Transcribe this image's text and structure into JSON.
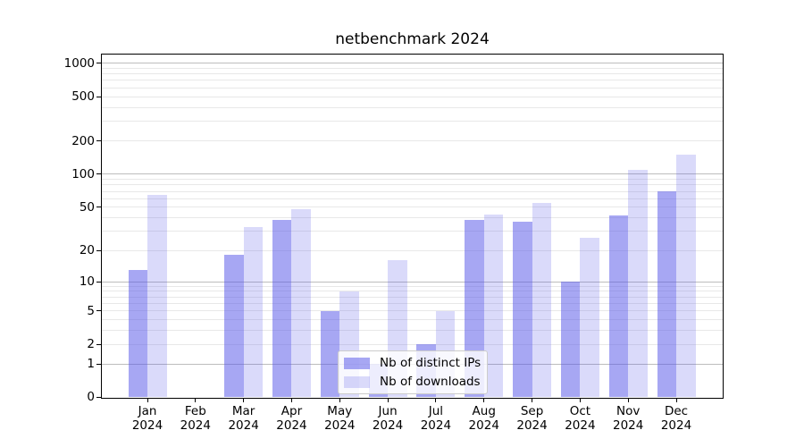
{
  "figure": {
    "title": "netbenchmark 2024"
  },
  "chart_data": {
    "type": "bar",
    "title": "netbenchmark 2024",
    "categories": [
      "Jan",
      "Feb",
      "Mar",
      "Apr",
      "May",
      "Jun",
      "Jul",
      "Aug",
      "Sep",
      "Oct",
      "Nov",
      "Dec"
    ],
    "category_year": "2024",
    "x_tick_labels": [
      "Jan 2024",
      "Feb 2024",
      "Mar 2024",
      "Apr 2024",
      "May 2024",
      "Jun 2024",
      "Jul 2024",
      "Aug 2024",
      "Sep 2024",
      "Oct 2024",
      "Nov 2024",
      "Dec 2024"
    ],
    "series": [
      {
        "name": "Nb of distinct IPs",
        "values": [
          13,
          0,
          18,
          38,
          5,
          1,
          2,
          38,
          37,
          10,
          42,
          70
        ],
        "color": "rgba(86,86,232,0.52)"
      },
      {
        "name": "Nb of downloads",
        "values": [
          65,
          0,
          33,
          48,
          8,
          16,
          5,
          43,
          55,
          26,
          110,
          150
        ],
        "color": "rgba(86,86,232,0.22)"
      }
    ],
    "yscale": "log1p",
    "ylim": [
      0,
      1000
    ],
    "y_tick_labels": [
      "0",
      "1",
      "2",
      "5",
      "10",
      "20",
      "50",
      "100",
      "200",
      "500",
      "1000"
    ],
    "y_tick_values": [
      0,
      1,
      2,
      5,
      10,
      20,
      50,
      100,
      200,
      500,
      1000
    ],
    "y_major_gridlines": [
      1,
      10,
      100,
      1000
    ],
    "y_minor_gridlines": [
      2,
      3,
      4,
      5,
      6,
      7,
      8,
      9,
      20,
      30,
      40,
      50,
      60,
      70,
      80,
      90,
      200,
      300,
      400,
      500,
      600,
      700,
      800,
      900
    ],
    "grid": true,
    "legend_position": "lower center",
    "colors": {
      "ips_bar": "rgba(86,86,232,0.52)",
      "downloads_bar": "rgba(86,86,232,0.22)",
      "major_grid": "#bdbdbd",
      "minor_grid": "#e8e8e8",
      "spine": "#000000",
      "background": "#ffffff",
      "legend_bg": "rgba(255,255,255,0.8)",
      "legend_border": "#cccccc"
    }
  }
}
